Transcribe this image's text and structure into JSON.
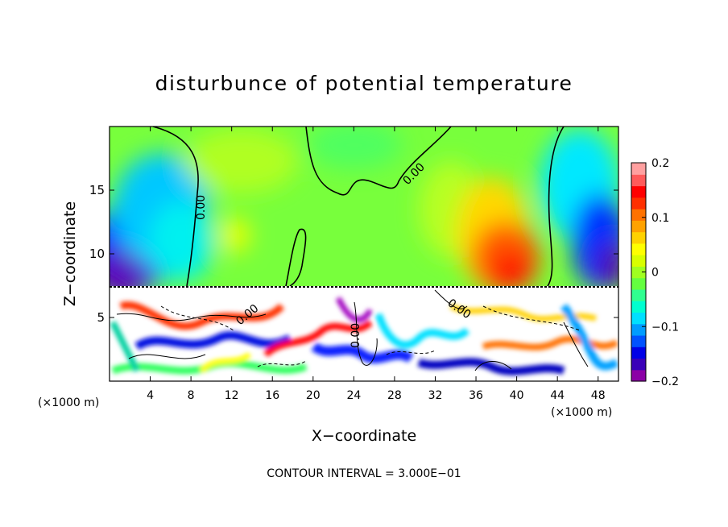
{
  "chart_data": {
    "type": "heatmap",
    "title": "disturbunce of potential temperature",
    "xlabel": "X−coordinate",
    "ylabel": "Z−coordinate",
    "x_unit_left": "(×1000 m)",
    "x_unit_right": "(×1000 m)",
    "footer": "CONTOUR INTERVAL = 3.000E−01",
    "xlim": [
      0,
      50
    ],
    "ylim": [
      0,
      20
    ],
    "x_ticks": [
      4,
      8,
      12,
      16,
      20,
      24,
      28,
      32,
      36,
      40,
      44,
      48
    ],
    "y_ticks": [
      5,
      10,
      15
    ],
    "colorbar": {
      "range": [
        -0.2,
        0.2
      ],
      "tick_values": [
        0.2,
        0.1,
        0,
        -0.1,
        -0.2
      ],
      "tick_labels": [
        "0.2",
        "0.1",
        "0",
        "−0.1",
        "−0.2"
      ],
      "colors": [
        "#8b00a6",
        "#3a00b8",
        "#0000e6",
        "#0052ff",
        "#009cff",
        "#00e0ff",
        "#00ffd0",
        "#30ff90",
        "#64ff40",
        "#a0ff20",
        "#d8ff00",
        "#ffff00",
        "#ffd200",
        "#ffa200",
        "#ff7200",
        "#ff3000",
        "#ff0000",
        "#ff5a5a",
        "#ffa0a0"
      ]
    },
    "contour_labels": [
      "0.00",
      "0.00",
      "0.00",
      "0.00",
      "0.00"
    ],
    "contour_interval": 0.3,
    "grid": false,
    "legend": "colorbar right"
  }
}
